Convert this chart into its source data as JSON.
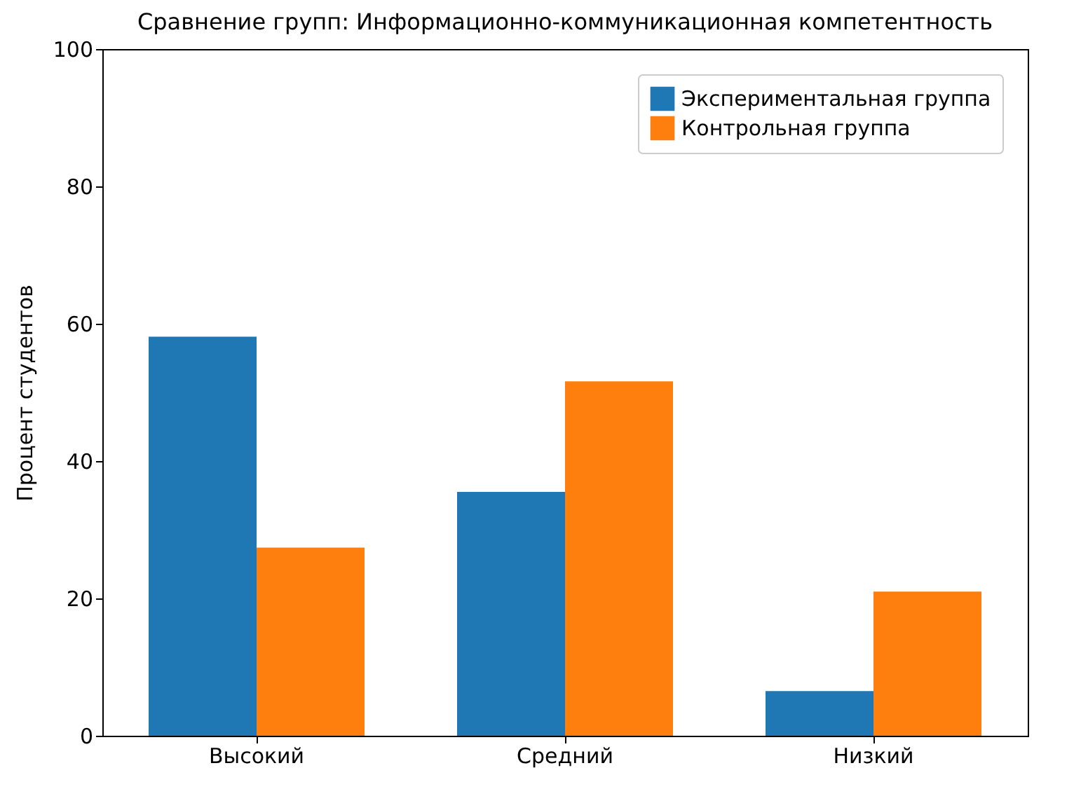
{
  "chart_data": {
    "type": "bar",
    "title": "Сравнение групп: Информационно-коммуникационная компетентность",
    "ylabel": "Процент студентов",
    "categories": [
      "Высокий",
      "Средний",
      "Низкий"
    ],
    "series": [
      {
        "name": "Экспериментальная группа",
        "color": "#1f77b4",
        "values": [
          58.1,
          35.5,
          6.5
        ]
      },
      {
        "name": "Контрольная группа",
        "color": "#ff7f0e",
        "values": [
          27.4,
          51.6,
          21.0
        ]
      }
    ],
    "ylim": [
      0,
      100
    ],
    "yticks": [
      0,
      20,
      40,
      60,
      80,
      100
    ],
    "grid": false,
    "legend": "top right"
  }
}
